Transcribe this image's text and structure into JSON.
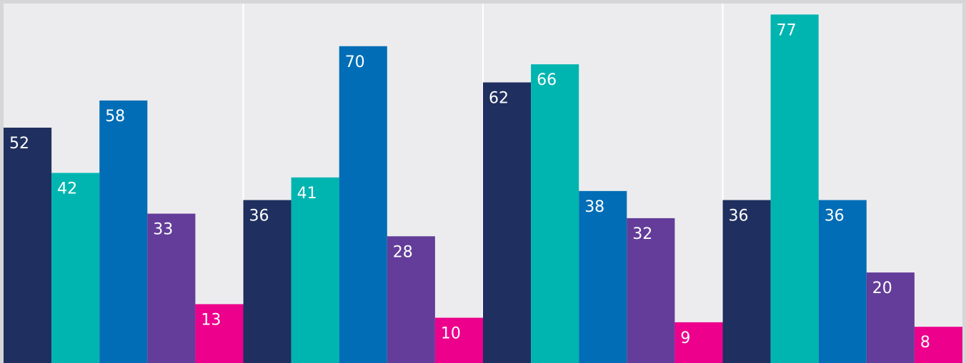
{
  "chart_data": {
    "type": "bar",
    "categories": [
      "",
      "",
      "",
      ""
    ],
    "series": [
      {
        "color": "#1f2f5f",
        "values": [
          52,
          36,
          62,
          36
        ]
      },
      {
        "color": "#00b5b0",
        "values": [
          42,
          41,
          66,
          77
        ]
      },
      {
        "color": "#006db6",
        "values": [
          58,
          70,
          38,
          36
        ]
      },
      {
        "color": "#633d99",
        "values": [
          33,
          28,
          32,
          20
        ]
      },
      {
        "color": "#ec008c",
        "values": [
          13,
          10,
          9,
          8
        ]
      }
    ],
    "ylim": [
      0,
      78
    ],
    "grid": false,
    "legend": "none",
    "panel_background": "#ececee",
    "separator_color": "#ffffff"
  }
}
